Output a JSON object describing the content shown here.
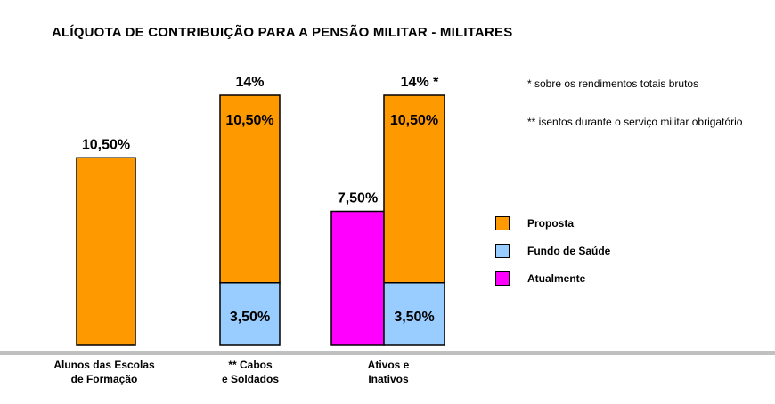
{
  "chart_data": {
    "type": "bar",
    "title": "ALÍQUOTA DE CONTRIBUIÇÃO PARA A PENSÃO MILITAR - MILITARES",
    "categories": [
      {
        "line1": "Alunos das Escolas",
        "line2": "de Formação"
      },
      {
        "line1": "** Cabos",
        "line2": "e Soldados"
      },
      {
        "line1": "Ativos e",
        "line2": "Inativos"
      }
    ],
    "series": [
      {
        "name": "Proposta",
        "color": "#ff9900"
      },
      {
        "name": "Fundo de Saúde",
        "color": "#99ccff"
      },
      {
        "name": "Atualmente",
        "color": "#ff00ff"
      }
    ],
    "bars": [
      {
        "category": 0,
        "segments": [
          {
            "series": "Proposta",
            "value": 10.5,
            "label": ""
          }
        ],
        "top_label": "10,50%"
      },
      {
        "category": 1,
        "segments": [
          {
            "series": "Fundo de Saúde",
            "value": 3.5,
            "label": "3,50%"
          },
          {
            "series": "Proposta",
            "value": 10.5,
            "label": "10,50%"
          }
        ],
        "top_label": "14%"
      },
      {
        "category": 2,
        "segments": [
          {
            "series": "Atualmente",
            "value": 7.5,
            "label": ""
          }
        ],
        "top_label": "7,50%"
      },
      {
        "category": 2,
        "segments": [
          {
            "series": "Fundo de Saúde",
            "value": 3.5,
            "label": "3,50%"
          },
          {
            "series": "Proposta",
            "value": 10.5,
            "label": "10,50%"
          }
        ],
        "top_label": "14% *"
      }
    ],
    "ylim": [
      0,
      14
    ],
    "notes": [
      "* sobre os rendimentos totais brutos",
      "** isentos durante o serviço militar obrigatório"
    ],
    "legend_position": "right",
    "grid": false
  }
}
